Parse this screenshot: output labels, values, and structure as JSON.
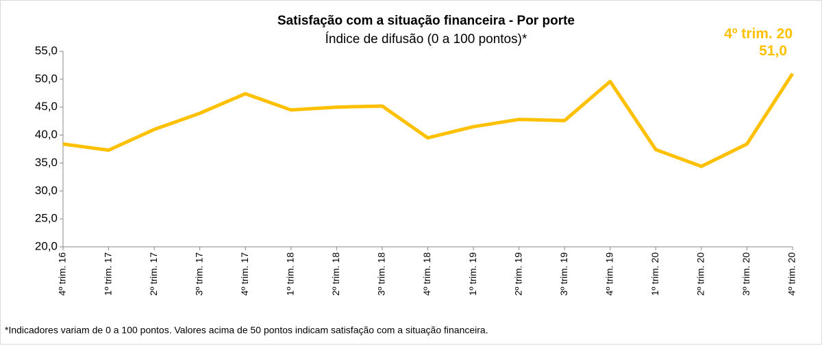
{
  "chart_data": {
    "type": "line",
    "title": "Satisfação com a situação financeira - Por porte",
    "subtitle": "Índice de difusão (0 a 100 pontos)*",
    "note": "*Indicadores variam de 0 a 100 pontos. Valores acima de 50 pontos indicam satisfação com a situação financeira.",
    "categories": [
      "4º trim. 16",
      "1º trim. 17",
      "2º trim. 17",
      "3º trim. 17",
      "4º trim. 17",
      "1º trim. 18",
      "2º trim. 18",
      "3º trim. 18",
      "4º trim. 18",
      "1º trim. 19",
      "2º trim. 19",
      "3º trim. 19",
      "4º trim. 19",
      "1º trim. 20",
      "2º trim. 20",
      "3º trim. 20",
      "4º trim. 20"
    ],
    "series": [
      {
        "name": "Satisfação com a situação financeira",
        "color": "#FFC000",
        "values": [
          38.4,
          37.3,
          41.0,
          43.9,
          47.4,
          44.5,
          45.0,
          45.2,
          39.5,
          41.5,
          42.8,
          42.6,
          49.6,
          37.4,
          34.4,
          38.4,
          51.0
        ],
        "value_labels": [
          null,
          null,
          null,
          null,
          null,
          null,
          null,
          null,
          null,
          null,
          null,
          null,
          null,
          null,
          null,
          null,
          "51,0"
        ]
      }
    ],
    "ylim": [
      20,
      55
    ],
    "yticks": [
      {
        "value": 20,
        "label": "20,0"
      },
      {
        "value": 25,
        "label": "25,0"
      },
      {
        "value": 30,
        "label": "30,0"
      },
      {
        "value": 35,
        "label": "35,0"
      },
      {
        "value": 40,
        "label": "40,0"
      },
      {
        "value": 45,
        "label": "45,0"
      },
      {
        "value": 50,
        "label": "50,0"
      },
      {
        "value": 55,
        "label": "55,0"
      }
    ],
    "grid": false
  }
}
